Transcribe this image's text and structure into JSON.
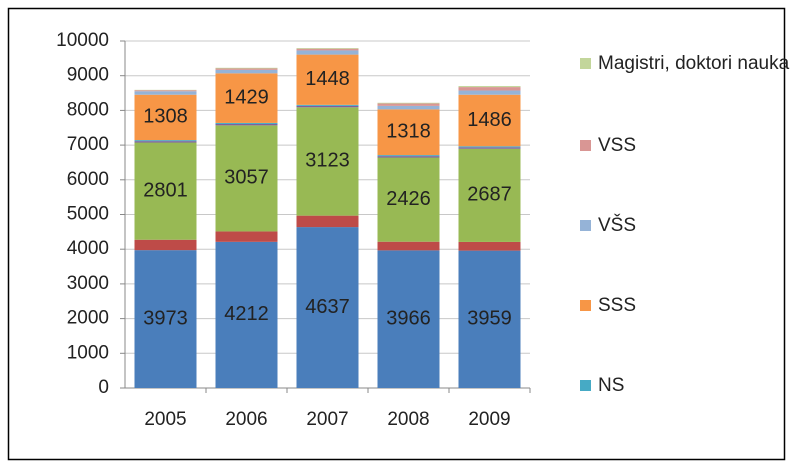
{
  "chart_data": {
    "type": "stacked_bar",
    "categories": [
      "2005",
      "2006",
      "2007",
      "2008",
      "2009"
    ],
    "ylim": [
      0,
      10000
    ],
    "yticks": [
      0,
      1000,
      2000,
      3000,
      4000,
      5000,
      6000,
      7000,
      8000,
      9000,
      10000
    ],
    "grid": true,
    "legend": "right",
    "series": [
      {
        "color": "#4a7ebb",
        "values": [
          3973,
          4212,
          4637,
          3966,
          3959
        ],
        "data_labels": true
      },
      {
        "color": "#be4b48",
        "values": [
          300,
          300,
          330,
          250,
          250
        ]
      },
      {
        "color": "#98b954",
        "values": [
          2801,
          3057,
          3123,
          2426,
          2687
        ],
        "data_labels": true
      },
      {
        "color": "#7d60a0",
        "values": [
          40,
          40,
          40,
          40,
          40
        ]
      },
      {
        "name": "NS",
        "color": "#46aac5",
        "values": [
          30,
          30,
          30,
          30,
          30
        ]
      },
      {
        "name": "SSS",
        "color": "#f79646",
        "values": [
          1308,
          1429,
          1448,
          1318,
          1486
        ],
        "data_labels": true
      },
      {
        "name": "VŠS",
        "color": "#95b3d7",
        "values": [
          100,
          100,
          120,
          100,
          120
        ]
      },
      {
        "name": "VSS",
        "color": "#d99694",
        "values": [
          30,
          40,
          50,
          70,
          100
        ]
      },
      {
        "name": "Magistri, doktori nauka",
        "color": "#c3d69b",
        "values": [
          10,
          20,
          20,
          20,
          30
        ]
      }
    ]
  }
}
